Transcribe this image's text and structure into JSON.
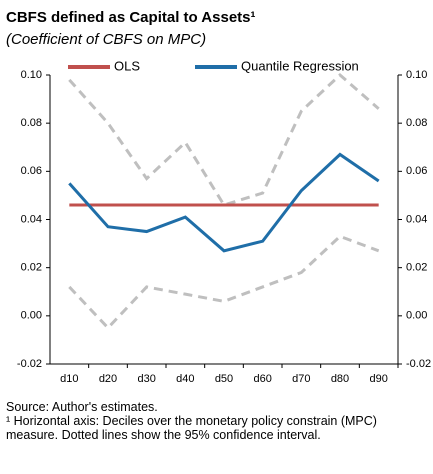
{
  "chart_data": {
    "type": "line",
    "title": "CBFS defined as Capital to Assets¹",
    "subtitle": "(Coefficient  of  CBFS on MPC)",
    "categories": [
      "d10",
      "d20",
      "d30",
      "d40",
      "d50",
      "d60",
      "d70",
      "d80",
      "d90"
    ],
    "series": [
      {
        "name": "OLS",
        "color": "#c0504d",
        "values": [
          0.046,
          0.046,
          0.046,
          0.046,
          0.046,
          0.046,
          0.046,
          0.046,
          0.046
        ],
        "dashed": false
      },
      {
        "name": "Quantile Regression",
        "color": "#1f6ea8",
        "values": [
          0.055,
          0.037,
          0.035,
          0.041,
          0.027,
          0.031,
          0.052,
          0.067,
          0.056
        ],
        "dashed": false
      },
      {
        "color": "#bfbfbf",
        "values": [
          0.098,
          0.08,
          0.057,
          0.072,
          0.046,
          0.051,
          0.085,
          0.1,
          0.086
        ],
        "dashed": true
      },
      {
        "color": "#bfbfbf",
        "values": [
          0.012,
          -0.005,
          0.012,
          0.009,
          0.006,
          0.012,
          0.018,
          0.033,
          0.027
        ],
        "dashed": true
      }
    ],
    "ylim": [
      -0.02,
      0.1
    ],
    "yticks": [
      {
        "value": -0.02,
        "label": "-0.02"
      },
      {
        "value": 0,
        "label": "0.00"
      },
      {
        "value": 0.02,
        "label": "0.02"
      },
      {
        "value": 0.04,
        "label": "0.04"
      },
      {
        "value": 0.06,
        "label": "0.06"
      },
      {
        "value": 0.08,
        "label": "0.08"
      },
      {
        "value": 0.1,
        "label": "0.10"
      }
    ],
    "y2lim": [
      -0.02,
      0.1
    ],
    "y2ticks": [
      {
        "value": -0.02,
        "label": "-0.02"
      },
      {
        "value": 0,
        "label": "0.00"
      },
      {
        "value": 0.02,
        "label": "0.02"
      },
      {
        "value": 0.04,
        "label": "0.04"
      },
      {
        "value": 0.06,
        "label": "0.06"
      },
      {
        "value": 0.08,
        "label": "0.08"
      },
      {
        "value": 0.1,
        "label": "0.10"
      }
    ],
    "grid": false,
    "source": "Source: Author's estimates.",
    "note": "¹ Horizontal axis:  Deciles over the monetary policy constrain (MPC) measure.  Dotted lines show the 95% confidence interval."
  }
}
